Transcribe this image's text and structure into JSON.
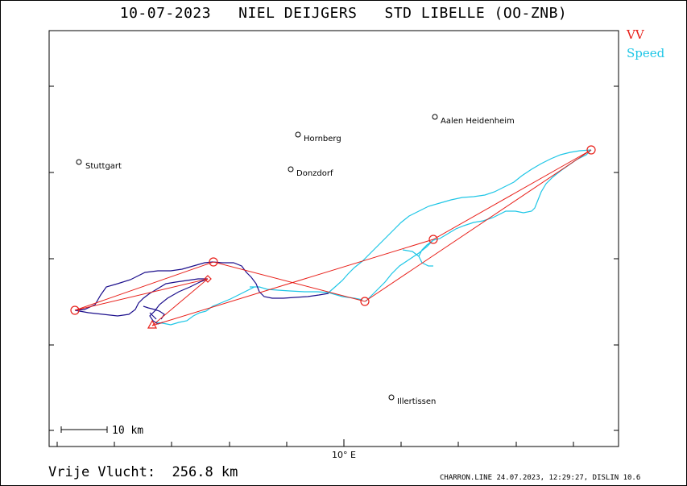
{
  "title": "10-07-2023   NIEL DEIJGERS   STD LIBELLE (OO-ZNB)",
  "legend": {
    "vv_label": "VV",
    "speed_label": "Speed",
    "vv_color": "#e8201a",
    "speed_color": "#1ec6e6",
    "track_color": "#1c0f8c"
  },
  "axis": {
    "x_label": "10° E"
  },
  "scale_bar": {
    "label": "10 km"
  },
  "cities": [
    {
      "name": "Stuttgart"
    },
    {
      "name": "Hornberg"
    },
    {
      "name": "Aalen Heidenheim"
    },
    {
      "name": "Donzdorf"
    },
    {
      "name": "Illertissen"
    }
  ],
  "footer": {
    "distance": "Vrije Vlucht:  256.8 km",
    "credits": "CHARRON.LINE 24.07.2023, 12:29:27, DISLIN 10.6"
  },
  "icons": {
    "turnpoint": "turnpoint-circle-icon",
    "start": "start-triangle-icon",
    "city": "city-circle-icon"
  }
}
